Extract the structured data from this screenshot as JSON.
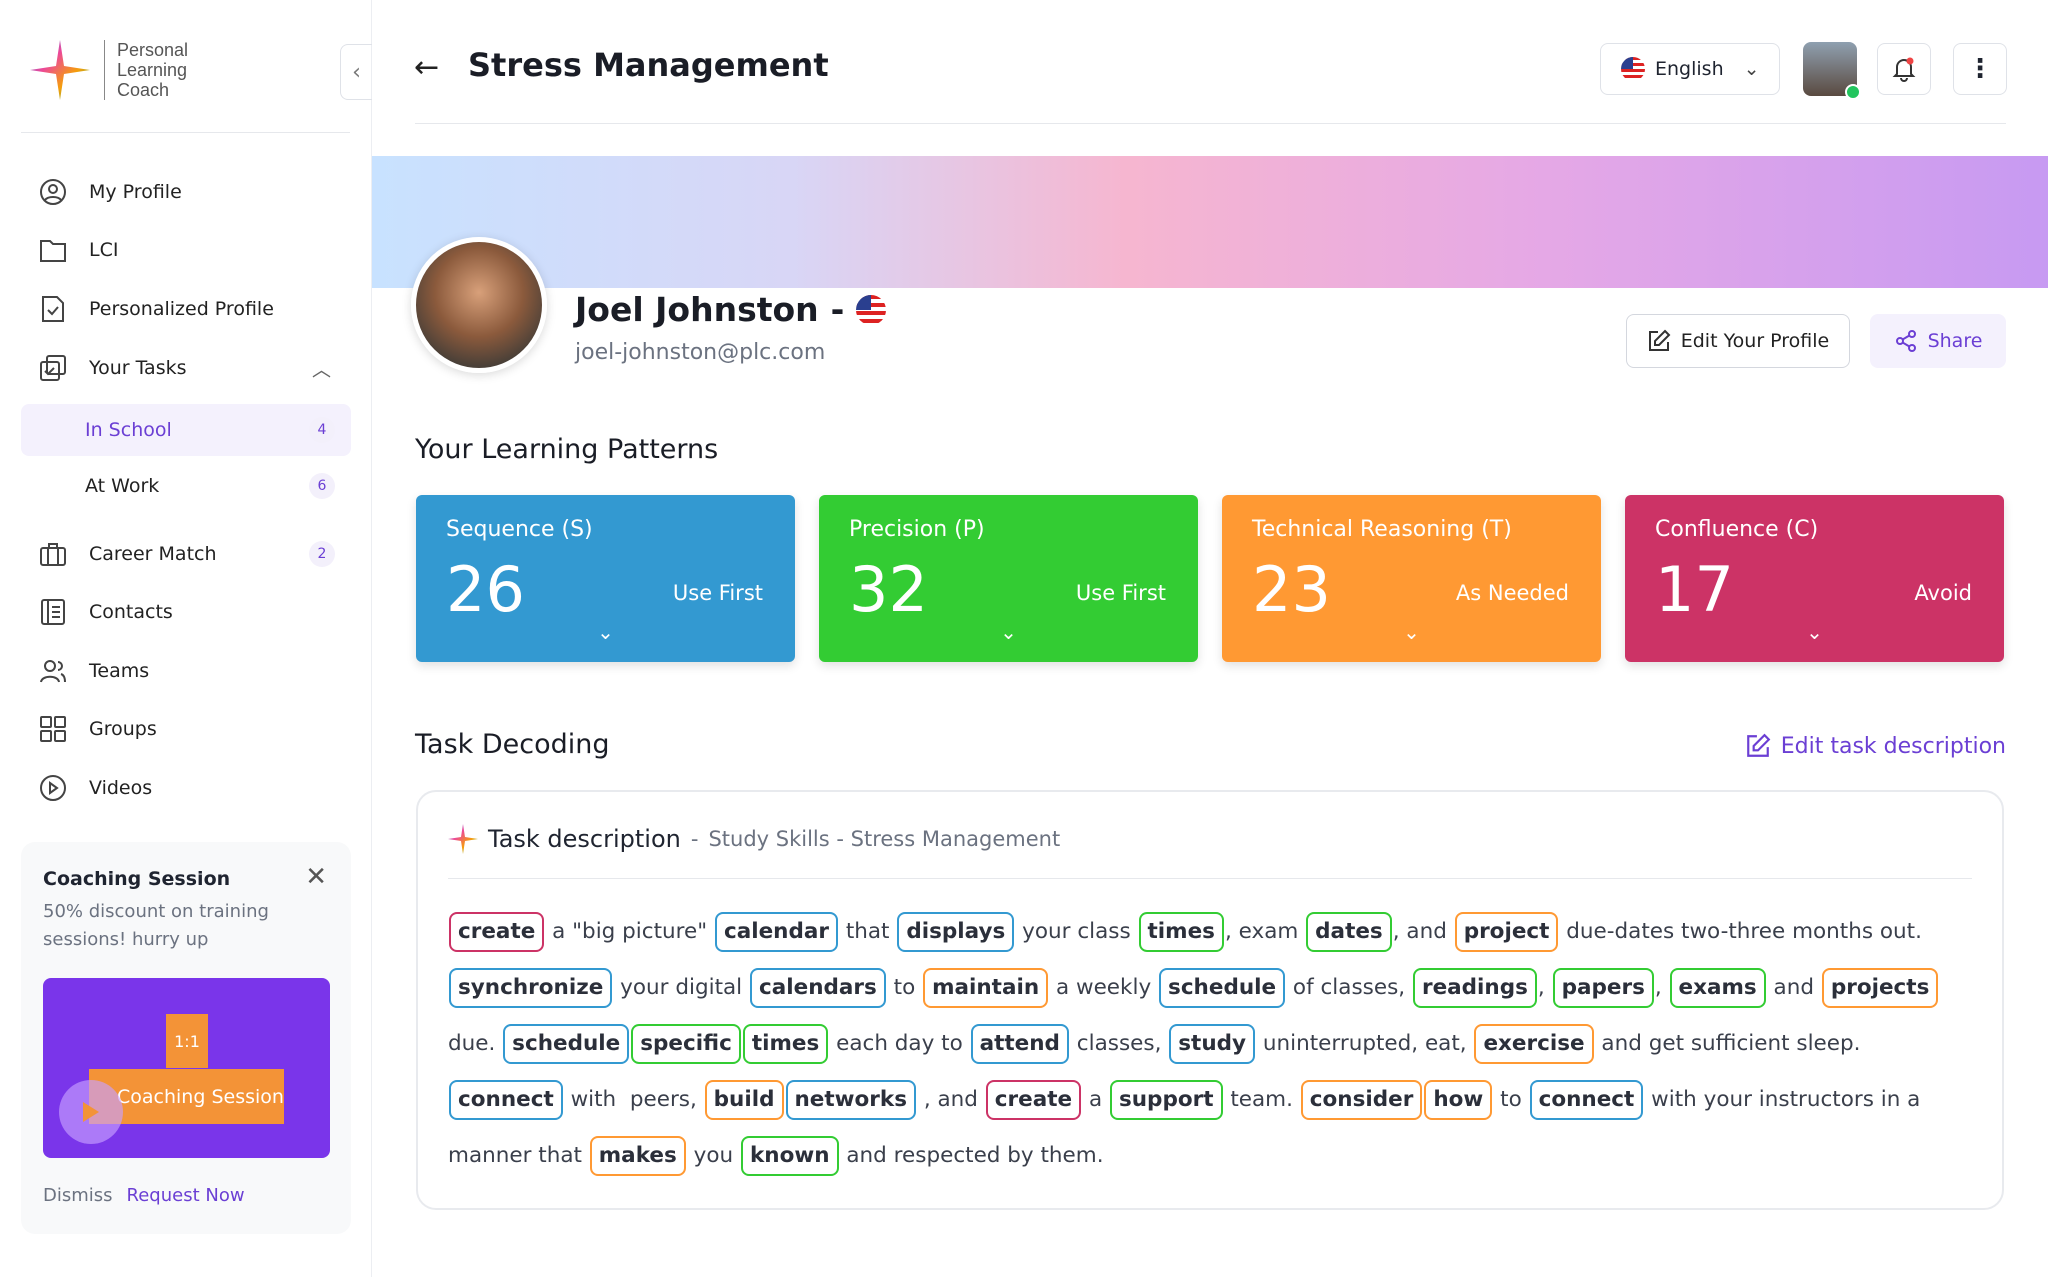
{
  "app": {
    "logo_text": [
      "Personal",
      "Learning",
      "Coach"
    ]
  },
  "sidebar": {
    "items": [
      {
        "label": "My Profile",
        "icon": "user-circle-icon"
      },
      {
        "label": "LCI",
        "icon": "folder-icon"
      },
      {
        "label": "Personalized Profile",
        "icon": "document-check-icon"
      },
      {
        "label": "Your Tasks",
        "icon": "tasks-icon"
      },
      {
        "label": "In School",
        "badge": "4"
      },
      {
        "label": "At Work",
        "badge": "6"
      },
      {
        "label": "Career Match",
        "icon": "briefcase-icon",
        "badge": "2"
      },
      {
        "label": "Contacts",
        "icon": "contacts-icon"
      },
      {
        "label": "Teams",
        "icon": "users-icon"
      },
      {
        "label": "Groups",
        "icon": "grid-icon"
      },
      {
        "label": "Videos",
        "icon": "play-circle-icon"
      }
    ],
    "coaching": {
      "title": "Coaching Session",
      "text": "50% discount on training sessions! hurry up",
      "video_tag": "1:1",
      "video_title": "Coaching Session",
      "dismiss": "Dismiss",
      "request": "Request Now"
    }
  },
  "header": {
    "title": "Stress Management",
    "language": "English"
  },
  "profile": {
    "name": "Joel Johnston",
    "separator": "-",
    "email": "joel-johnston@plc.com",
    "edit_label": "Edit Your Profile",
    "share_label": "Share"
  },
  "patterns": {
    "title": "Your Learning Patterns",
    "cards": [
      {
        "label": "Sequence (S)",
        "value": "26",
        "usage": "Use First",
        "color": "#3399d1"
      },
      {
        "label": "Precision (P)",
        "value": "32",
        "usage": "Use First",
        "color": "#33cc33"
      },
      {
        "label": "Technical Reasoning (T)",
        "value": "23",
        "usage": "As Needed",
        "color": "#ff9933"
      },
      {
        "label": "Confluence (C)",
        "value": "17",
        "usage": "Avoid",
        "color": "#cc3366"
      }
    ]
  },
  "task": {
    "title": "Task Decoding",
    "edit_label": "Edit task description",
    "box_title": "Task description",
    "box_sep": "-",
    "box_subtitle": "Study Skills - Stress Management",
    "tokens": [
      [
        "r",
        "create"
      ],
      [
        "t",
        " a \"big picture\" "
      ],
      [
        "b",
        "calendar"
      ],
      [
        "t",
        " that "
      ],
      [
        "b",
        "displays"
      ],
      [
        "t",
        " your class "
      ],
      [
        "g",
        "times"
      ],
      [
        "t",
        ", exam "
      ],
      [
        "g",
        "dates"
      ],
      [
        "t",
        ", and "
      ],
      [
        "o",
        "project"
      ],
      [
        "t",
        " due-dates two-three months out. "
      ],
      [
        "b",
        "synchronize"
      ],
      [
        "t",
        " your digital "
      ],
      [
        "b",
        "calendars"
      ],
      [
        "t",
        " to "
      ],
      [
        "o",
        "maintain"
      ],
      [
        "t",
        " a weekly "
      ],
      [
        "b",
        "schedule"
      ],
      [
        "t",
        " of classes, "
      ],
      [
        "g",
        "readings"
      ],
      [
        "t",
        ", "
      ],
      [
        "g",
        "papers"
      ],
      [
        "t",
        ", "
      ],
      [
        "g",
        "exams"
      ],
      [
        "t",
        " and "
      ],
      [
        "o",
        "projects"
      ],
      [
        "t",
        " due. "
      ],
      [
        "b",
        "schedule"
      ],
      [
        "g",
        "specific"
      ],
      [
        "g",
        "times"
      ],
      [
        "t",
        " each day to "
      ],
      [
        "b",
        "attend"
      ],
      [
        "t",
        " classes, "
      ],
      [
        "b",
        "study"
      ],
      [
        "t",
        " uninterrupted, eat, "
      ],
      [
        "o",
        "exercise"
      ],
      [
        "t",
        " and get sufficient sleep. "
      ],
      [
        "b",
        "connect"
      ],
      [
        "t",
        " with  peers, "
      ],
      [
        "o",
        "build"
      ],
      [
        "b",
        "networks"
      ],
      [
        "t",
        " , and "
      ],
      [
        "r",
        "create"
      ],
      [
        "t",
        " a "
      ],
      [
        "g",
        "support"
      ],
      [
        "t",
        " team. "
      ],
      [
        "o",
        "consider"
      ],
      [
        "o",
        "how"
      ],
      [
        "t",
        " to "
      ],
      [
        "b",
        "connect"
      ],
      [
        "t",
        " with your instructors in a manner that "
      ],
      [
        "o",
        "makes"
      ],
      [
        "t",
        " you "
      ],
      [
        "g",
        "known"
      ],
      [
        "t",
        " and respected by them."
      ]
    ]
  }
}
